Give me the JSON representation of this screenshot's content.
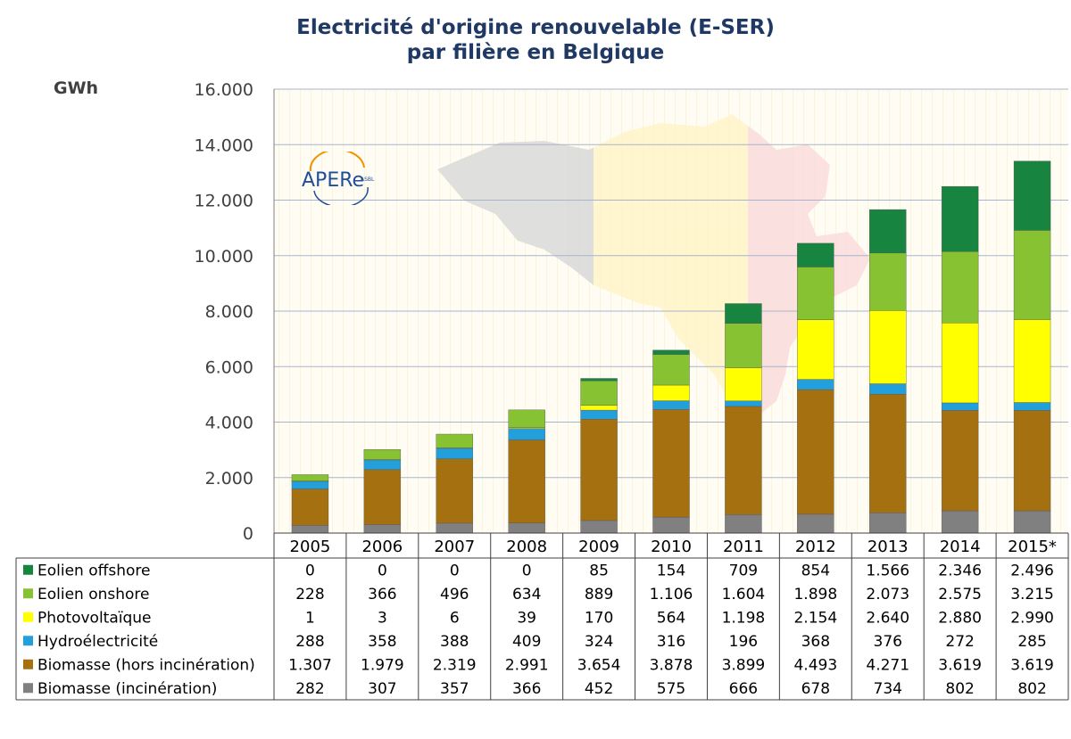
{
  "chart_data": {
    "type": "bar",
    "stacked": true,
    "title_line1": "Electricité d'origine renouvelable (E-SER)",
    "title_line2": "par filière en Belgique",
    "ylabel": "GWh",
    "ylim": [
      0,
      16000
    ],
    "yticks": [
      "0",
      "2.000",
      "4.000",
      "6.000",
      "8.000",
      "10.000",
      "12.000",
      "14.000",
      "16.000"
    ],
    "categories": [
      "2005",
      "2006",
      "2007",
      "2008",
      "2009",
      "2010",
      "2011",
      "2012",
      "2013",
      "2014",
      "2015*"
    ],
    "series": [
      {
        "name": "Biomasse (incinération)",
        "color": "#808080",
        "values": [
          282,
          307,
          357,
          366,
          452,
          575,
          666,
          678,
          734,
          802,
          802
        ],
        "labels": [
          "282",
          "307",
          "357",
          "366",
          "452",
          "575",
          "666",
          "678",
          "734",
          "802",
          "802"
        ]
      },
      {
        "name": "Biomasse (hors incinération)",
        "color": "#a5700f",
        "values": [
          1307,
          1979,
          2319,
          2991,
          3654,
          3878,
          3899,
          4493,
          4271,
          3619,
          3619
        ],
        "labels": [
          "1.307",
          "1.979",
          "2.319",
          "2.991",
          "3.654",
          "3.878",
          "3.899",
          "4.493",
          "4.271",
          "3.619",
          "3.619"
        ]
      },
      {
        "name": "Hydroélectricité",
        "color": "#23a0dc",
        "values": [
          288,
          358,
          388,
          409,
          324,
          316,
          196,
          368,
          376,
          272,
          285
        ],
        "labels": [
          "288",
          "358",
          "388",
          "409",
          "324",
          "316",
          "196",
          "368",
          "376",
          "272",
          "285"
        ]
      },
      {
        "name": "Photovoltaïque",
        "color": "#ffff00",
        "values": [
          1,
          3,
          6,
          39,
          170,
          564,
          1198,
          2154,
          2640,
          2880,
          2990
        ],
        "labels": [
          "1",
          "3",
          "6",
          "39",
          "170",
          "564",
          "1.198",
          "2.154",
          "2.640",
          "2.880",
          "2.990"
        ]
      },
      {
        "name": "Eolien onshore",
        "color": "#86c232",
        "values": [
          228,
          366,
          496,
          634,
          889,
          1106,
          1604,
          1898,
          2073,
          2575,
          3215
        ],
        "labels": [
          "228",
          "366",
          "496",
          "634",
          "889",
          "1.106",
          "1.604",
          "1.898",
          "2.073",
          "2.575",
          "3.215"
        ]
      },
      {
        "name": "Eolien offshore",
        "color": "#178440",
        "values": [
          0,
          0,
          0,
          0,
          85,
          154,
          709,
          854,
          1566,
          2346,
          2496
        ],
        "labels": [
          "0",
          "0",
          "0",
          "0",
          "85",
          "154",
          "709",
          "854",
          "1.566",
          "2.346",
          "2.496"
        ]
      }
    ],
    "grid": true,
    "legend": "data-table"
  },
  "logo": {
    "text": "APERe",
    "small": "ASBL"
  }
}
